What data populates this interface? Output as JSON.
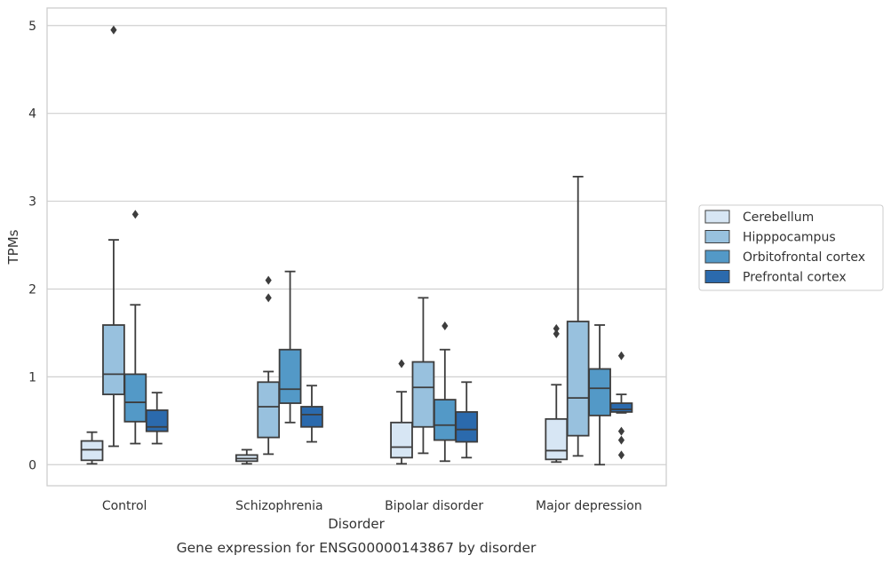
{
  "chart_data": {
    "type": "box",
    "caption": "Gene expression for ENSG00000143867 by disorder",
    "xlabel": "Disorder",
    "ylabel": "TPMs",
    "ylim": [
      -0.24,
      5.2
    ],
    "yticks": [
      0,
      1,
      2,
      3,
      4,
      5
    ],
    "grid": "horizontal",
    "legend_position": "right",
    "categories": [
      "Control",
      "Schizophrenia",
      "Bipolar disorder",
      "Major depression"
    ],
    "series": [
      {
        "name": "Cerebellum",
        "color": "#d7e6f4",
        "boxes": [
          {
            "whislo": 0.01,
            "q1": 0.05,
            "med": 0.17,
            "q3": 0.27,
            "whishi": 0.37,
            "fliers": []
          },
          {
            "whislo": 0.01,
            "q1": 0.04,
            "med": 0.07,
            "q3": 0.11,
            "whishi": 0.17,
            "fliers": []
          },
          {
            "whislo": 0.01,
            "q1": 0.08,
            "med": 0.2,
            "q3": 0.48,
            "whishi": 0.83,
            "fliers": [
              1.15
            ]
          },
          {
            "whislo": 0.03,
            "q1": 0.06,
            "med": 0.16,
            "q3": 0.52,
            "whishi": 0.91,
            "fliers": [
              1.49,
              1.55
            ]
          }
        ]
      },
      {
        "name": "Hipppocampus",
        "color": "#98c1de",
        "boxes": [
          {
            "whislo": 0.21,
            "q1": 0.8,
            "med": 1.03,
            "q3": 1.59,
            "whishi": 2.56,
            "fliers": [
              4.95
            ]
          },
          {
            "whislo": 0.12,
            "q1": 0.31,
            "med": 0.66,
            "q3": 0.94,
            "whishi": 1.06,
            "fliers": [
              1.9,
              2.1
            ]
          },
          {
            "whislo": 0.13,
            "q1": 0.43,
            "med": 0.88,
            "q3": 1.17,
            "whishi": 1.9,
            "fliers": []
          },
          {
            "whislo": 0.1,
            "q1": 0.33,
            "med": 0.76,
            "q3": 1.63,
            "whishi": 3.28,
            "fliers": []
          }
        ]
      },
      {
        "name": "Orbitofrontal cortex",
        "color": "#5399c7",
        "boxes": [
          {
            "whislo": 0.24,
            "q1": 0.49,
            "med": 0.71,
            "q3": 1.03,
            "whishi": 1.82,
            "fliers": [
              2.85
            ]
          },
          {
            "whislo": 0.48,
            "q1": 0.7,
            "med": 0.86,
            "q3": 1.31,
            "whishi": 2.2,
            "fliers": []
          },
          {
            "whislo": 0.04,
            "q1": 0.28,
            "med": 0.45,
            "q3": 0.74,
            "whishi": 1.31,
            "fliers": [
              1.58
            ]
          },
          {
            "whislo": 0.0,
            "q1": 0.56,
            "med": 0.87,
            "q3": 1.09,
            "whishi": 1.59,
            "fliers": []
          }
        ]
      },
      {
        "name": "Prefrontal cortex",
        "color": "#2b6aad",
        "boxes": [
          {
            "whislo": 0.24,
            "q1": 0.38,
            "med": 0.43,
            "q3": 0.62,
            "whishi": 0.82,
            "fliers": []
          },
          {
            "whislo": 0.26,
            "q1": 0.43,
            "med": 0.57,
            "q3": 0.66,
            "whishi": 0.9,
            "fliers": []
          },
          {
            "whislo": 0.08,
            "q1": 0.26,
            "med": 0.4,
            "q3": 0.6,
            "whishi": 0.94,
            "fliers": []
          },
          {
            "whislo": 0.59,
            "q1": 0.6,
            "med": 0.63,
            "q3": 0.7,
            "whishi": 0.8,
            "fliers": [
              0.11,
              0.28,
              0.38,
              1.24
            ]
          }
        ]
      }
    ]
  }
}
